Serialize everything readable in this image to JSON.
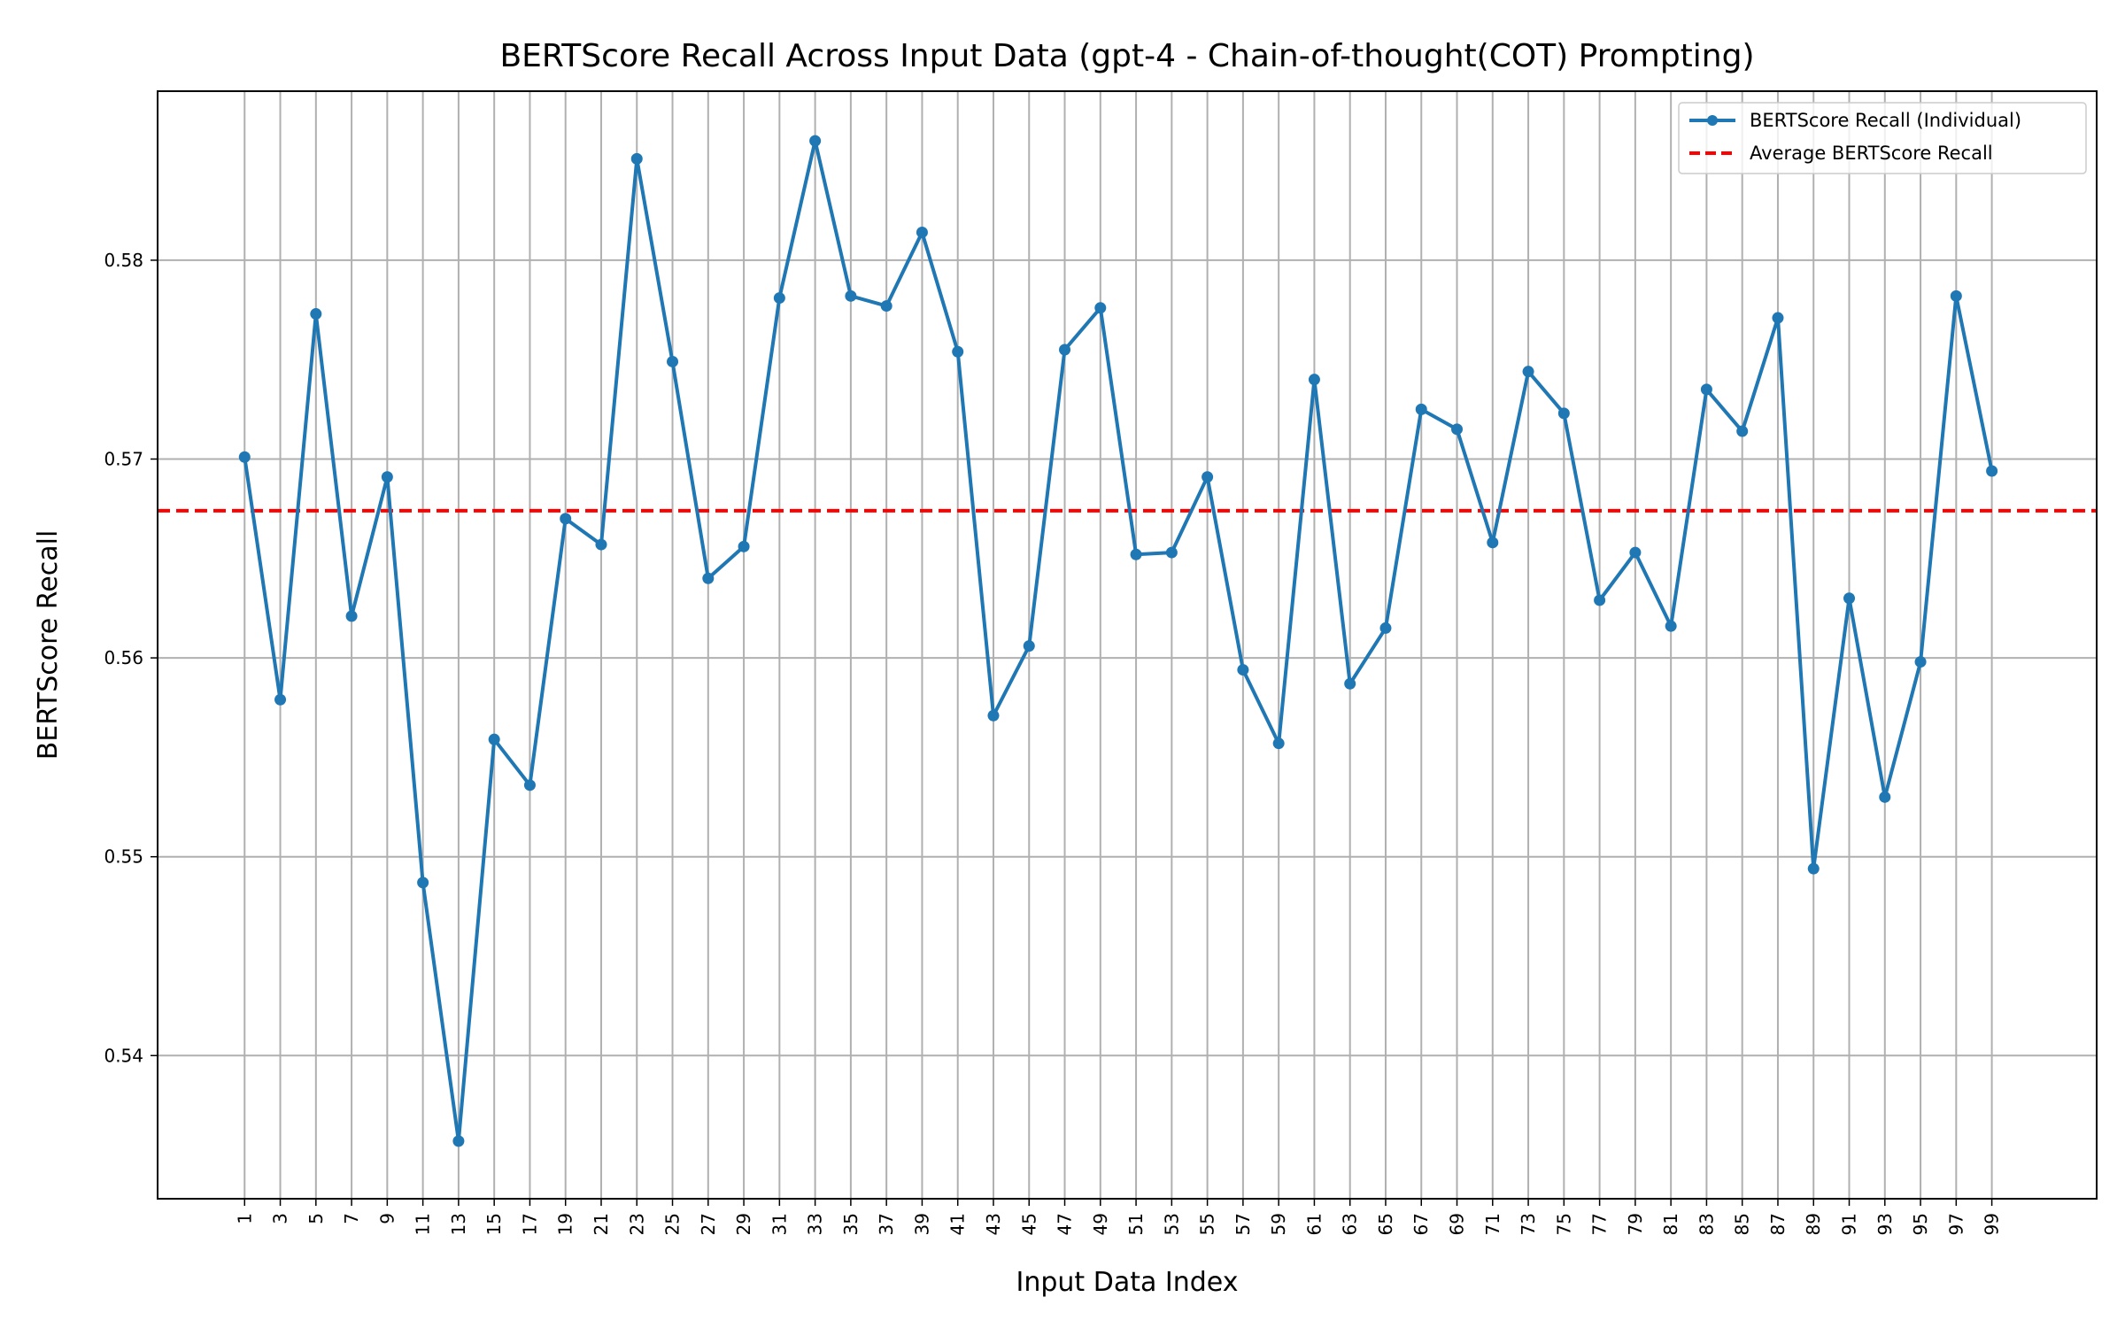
{
  "chart_data": {
    "type": "line",
    "title": "BERTScore Recall Across Input Data (gpt-4 - Chain-of-thought(COT) Prompting)",
    "xlabel": "Input Data Index",
    "ylabel": "BERTScore Recall",
    "x": [
      1,
      3,
      5,
      7,
      9,
      11,
      13,
      15,
      17,
      19,
      21,
      23,
      25,
      27,
      29,
      31,
      33,
      35,
      37,
      39,
      41,
      43,
      45,
      47,
      49,
      51,
      53,
      55,
      57,
      59,
      61,
      63,
      65,
      67,
      69,
      71,
      73,
      75,
      77,
      79,
      81,
      83,
      85,
      87,
      89,
      91,
      93,
      95,
      97,
      99
    ],
    "xlim": [
      -3.88,
      104.88
    ],
    "ylim": [
      0.5328,
      0.5885
    ],
    "yticks": [
      0.54,
      0.55,
      0.56,
      0.57,
      0.58
    ],
    "ytick_labels": [
      "0.54",
      "0.55",
      "0.56",
      "0.57",
      "0.58"
    ],
    "series": [
      {
        "name": "BERTScore Recall (Individual)",
        "color": "#1f77b4",
        "values": [
          0.5701,
          0.5579,
          0.5773,
          0.5621,
          0.5691,
          0.5487,
          0.5357,
          0.5559,
          0.5536,
          0.567,
          0.5657,
          0.5851,
          0.5749,
          0.564,
          0.5656,
          0.5781,
          0.586,
          0.5782,
          0.5777,
          0.5814,
          0.5754,
          0.5571,
          0.5606,
          0.5755,
          0.5776,
          0.5652,
          0.5653,
          0.5691,
          0.5594,
          0.5557,
          0.574,
          0.5587,
          0.5615,
          0.5725,
          0.5715,
          0.5658,
          0.5744,
          0.5723,
          0.5629,
          0.5653,
          0.5616,
          0.5735,
          0.5714,
          0.5771,
          0.5494,
          0.563,
          0.553,
          0.5598,
          0.5782,
          0.5694
        ]
      }
    ],
    "average": {
      "name": "Average BERTScore Recall",
      "value": 0.5674,
      "color": "#ff0000",
      "style": "dashed"
    },
    "grid": true,
    "legend_position": "top-right"
  }
}
